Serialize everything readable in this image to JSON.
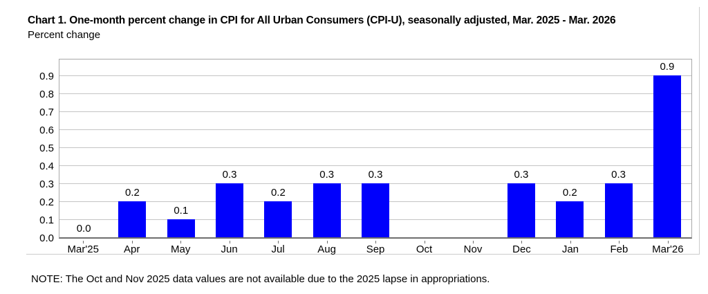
{
  "note": "NOTE: The Oct and Nov 2025 data values are not available due to the 2025 lapse in appropriations.",
  "colors": {
    "bar": "#0000fc",
    "grid": "#c4c4c4",
    "plot_border": "#a8a8a8",
    "baseline": "#6e6e6e",
    "figure_border": "#cccccc",
    "text": "#000000"
  },
  "chart_data": {
    "type": "bar",
    "title": "Chart 1. One-month percent change in CPI for All Urban Consumers (CPI-U), seasonally adjusted, Mar. 2025 - Mar. 2026",
    "subtitle": "Percent change",
    "categories": [
      "Mar'25",
      "Apr",
      "May",
      "Jun",
      "Jul",
      "Aug",
      "Sep",
      "Oct",
      "Nov",
      "Dec",
      "Jan",
      "Feb",
      "Mar'26"
    ],
    "values": [
      0.0,
      0.2,
      0.1,
      0.3,
      0.2,
      0.3,
      0.3,
      null,
      null,
      0.3,
      0.2,
      0.3,
      0.9
    ],
    "bar_labels": [
      "0.0",
      "0.2",
      "0.1",
      "0.3",
      "0.2",
      "0.3",
      "0.3",
      "",
      "",
      "0.3",
      "0.2",
      "0.3",
      "0.9"
    ],
    "missing_categories": [
      "Oct",
      "Nov"
    ],
    "xlabel": "",
    "ylabel": "Percent change",
    "ylim": [
      0,
      1.0
    ],
    "ytick_step": 0.1,
    "yticks": [
      "0.0",
      "0.1",
      "0.2",
      "0.3",
      "0.4",
      "0.5",
      "0.6",
      "0.7",
      "0.8",
      "0.9"
    ],
    "grid": true,
    "legend": false,
    "bar_color": "#0000fc"
  }
}
